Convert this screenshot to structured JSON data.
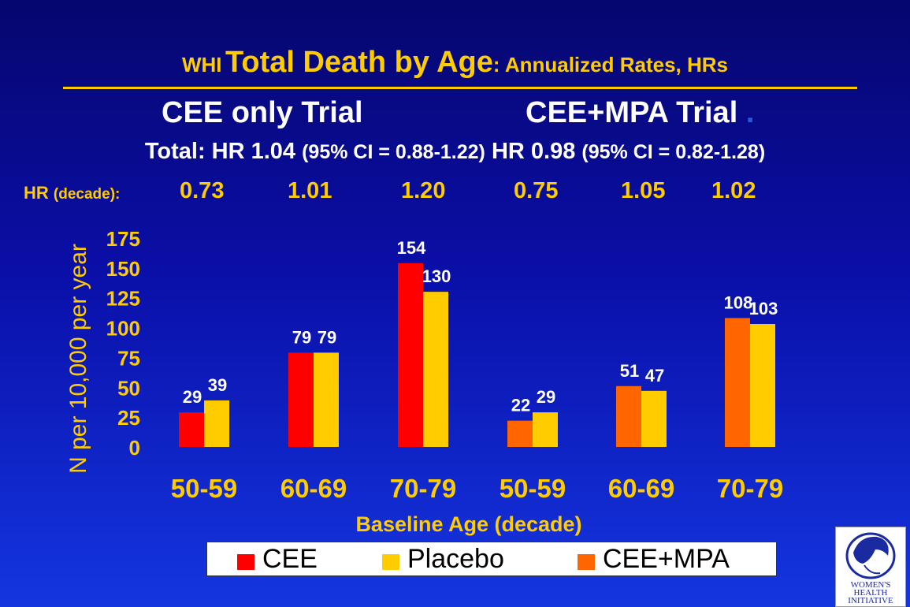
{
  "title": {
    "prefix": "WHI",
    "main": "Total Death by Age",
    "suffix": ": Annualized Rates, HRs"
  },
  "trials": {
    "left": "CEE only Trial",
    "right": "CEE+MPA Trial",
    "right_dot": "."
  },
  "totals": {
    "left_hr": "Total: HR 1.04",
    "left_ci": "(95% CI = 0.88-1.22)",
    "right_hr": "HR 0.98",
    "right_ci": "(95% CI = 0.82-1.28)"
  },
  "hr_decade": {
    "label": "HR",
    "label_small": "(decade):",
    "values": [
      "0.73",
      "1.01",
      "1.20",
      "0.75",
      "1.05",
      "1.02"
    ]
  },
  "colors": {
    "cee": "#ff0000",
    "placebo": "#ffcc00",
    "cee_mpa": "#ff6600",
    "accent": "#ffcc00"
  },
  "chart_data": {
    "type": "bar",
    "ylabel": "N per 10,000 per year",
    "xlabel": "Baseline Age (decade)",
    "ylim": [
      0,
      175
    ],
    "yticks": [
      0,
      25,
      50,
      75,
      100,
      125,
      150,
      175
    ],
    "categories": [
      "50-59",
      "60-69",
      "70-79",
      "50-59",
      "60-69",
      "70-79"
    ],
    "groups": [
      {
        "treatment": "CEE",
        "treatment_value": 29,
        "placebo_value": 39
      },
      {
        "treatment": "CEE",
        "treatment_value": 79,
        "placebo_value": 79
      },
      {
        "treatment": "CEE",
        "treatment_value": 154,
        "placebo_value": 130
      },
      {
        "treatment": "CEE+MPA",
        "treatment_value": 22,
        "placebo_value": 29
      },
      {
        "treatment": "CEE+MPA",
        "treatment_value": 51,
        "placebo_value": 47
      },
      {
        "treatment": "CEE+MPA",
        "treatment_value": 108,
        "placebo_value": 103
      }
    ],
    "series": [
      {
        "name": "CEE",
        "values": [
          29,
          79,
          154,
          null,
          null,
          null
        ]
      },
      {
        "name": "Placebo",
        "values": [
          39,
          79,
          130,
          29,
          47,
          103
        ]
      },
      {
        "name": "CEE+MPA",
        "values": [
          null,
          null,
          null,
          22,
          51,
          108
        ]
      }
    ],
    "legend": [
      "CEE",
      "Placebo",
      "CEE+MPA"
    ],
    "legend_position": "bottom"
  },
  "logo": {
    "lines": [
      "WOMEN'S",
      "HEALTH",
      "INITIATIVE"
    ]
  }
}
